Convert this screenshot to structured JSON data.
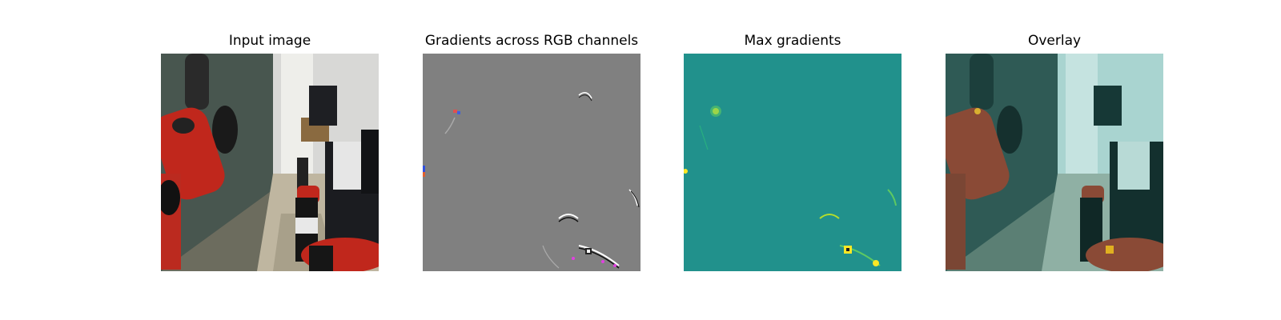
{
  "figure": {
    "panels": [
      {
        "id": "input",
        "title": "Input image"
      },
      {
        "id": "gradients",
        "title": "Gradients across RGB channels"
      },
      {
        "id": "max",
        "title": "Max gradients"
      },
      {
        "id": "overlay",
        "title": "Overlay"
      }
    ]
  },
  "colors": {
    "figure_background": "#ffffff",
    "gradient_background": "#808080",
    "max_gradient_background": "#21918c",
    "max_gradient_highlight": "#fde725",
    "overlay_tint": "#7fd0cc",
    "robot_red": "#c0271c"
  }
}
